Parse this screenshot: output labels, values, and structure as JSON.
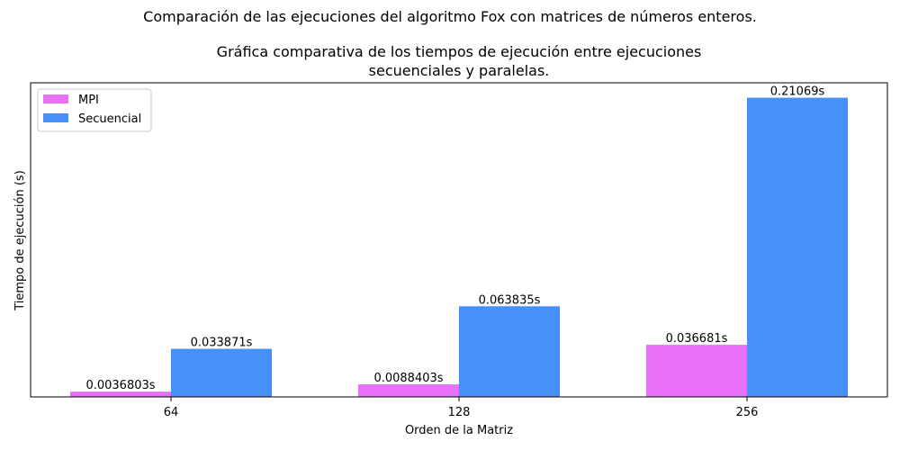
{
  "figure": {
    "suptitle": "Comparación de las ejecuciones del algoritmo Fox con matrices de números enteros."
  },
  "chart_data": {
    "type": "bar",
    "title_line1": "Gráfica comparativa de los tiempos de ejecución entre ejecuciones",
    "title_line2": "secuenciales y paralelas.",
    "xlabel": "Orden de la Matriz",
    "ylabel": "Tiempo de ejecución (s)",
    "categories": [
      "64",
      "128",
      "256"
    ],
    "series": [
      {
        "name": "MPI",
        "color": "#e770f7",
        "values": [
          0.0036803,
          0.0088403,
          0.036681
        ],
        "labels": [
          "0.0036803s",
          "0.0088403s",
          "0.036681s"
        ]
      },
      {
        "name": "Secuencial",
        "color": "#478ff9",
        "values": [
          0.033871,
          0.063835,
          0.21069
        ],
        "labels": [
          "0.033871s",
          "0.063835s",
          "0.21069s"
        ]
      }
    ],
    "ylim": [
      0,
      0.2212
    ],
    "y_ticks_visible": false,
    "grid": false,
    "legend_position": "top-left"
  }
}
